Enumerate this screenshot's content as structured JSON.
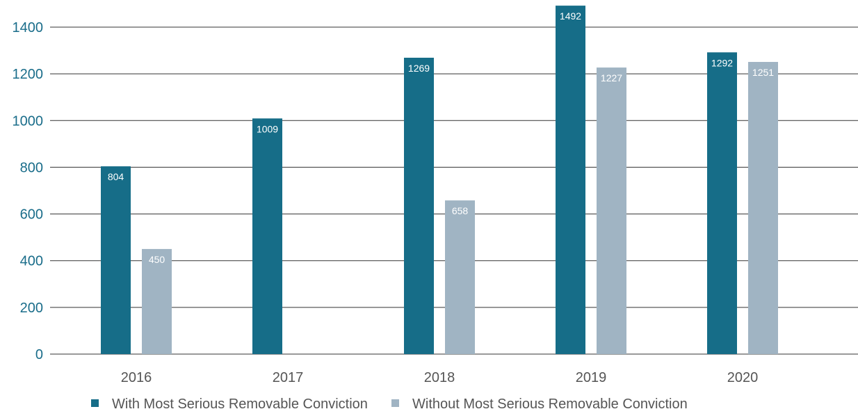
{
  "chart_data": {
    "type": "bar",
    "categories": [
      "2016",
      "2017",
      "2018",
      "2019",
      "2020"
    ],
    "series": [
      {
        "name": "With Most Serious Removable Conviction",
        "values": [
          804,
          1009,
          1269,
          1492,
          1292
        ],
        "color": "#166d88"
      },
      {
        "name": "Without Most Serious Removable Conviction",
        "values": [
          450,
          null,
          658,
          1227,
          1251
        ],
        "color": "#a0b4c3"
      }
    ],
    "y_ticks": [
      0,
      200,
      400,
      600,
      800,
      1000,
      1200,
      1400
    ],
    "ylim": [
      0,
      1400
    ],
    "title": "",
    "xlabel": "",
    "ylabel": "",
    "grid": "horizontal",
    "legend": "bottom-center",
    "data_labels": "inside-top"
  }
}
